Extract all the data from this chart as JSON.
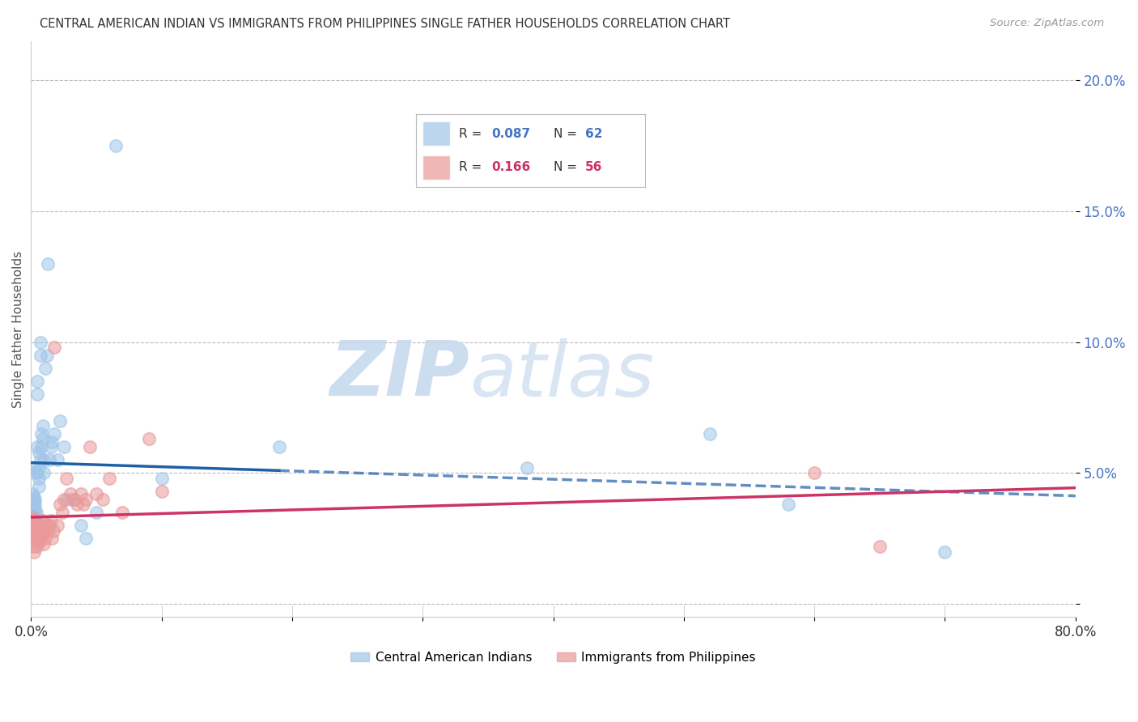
{
  "title": "CENTRAL AMERICAN INDIAN VS IMMIGRANTS FROM PHILIPPINES SINGLE FATHER HOUSEHOLDS CORRELATION CHART",
  "source": "Source: ZipAtlas.com",
  "ylabel": "Single Father Households",
  "xlim": [
    0.0,
    0.8
  ],
  "ylim": [
    -0.005,
    0.215
  ],
  "yticks": [
    0.0,
    0.05,
    0.1,
    0.15,
    0.2
  ],
  "ytick_labels": [
    "",
    "5.0%",
    "10.0%",
    "15.0%",
    "20.0%"
  ],
  "xticks": [
    0.0,
    0.1,
    0.2,
    0.3,
    0.4,
    0.5,
    0.6,
    0.7,
    0.8
  ],
  "xtick_labels": [
    "0.0%",
    "",
    "",
    "",
    "",
    "",
    "",
    "",
    "80.0%"
  ],
  "grid_color": "#bbbbbb",
  "blue_color": "#9fc5e8",
  "pink_color": "#ea9999",
  "blue_line_color": "#1f5fa6",
  "pink_line_color": "#cc3366",
  "blue_R": 0.087,
  "blue_N": 62,
  "pink_R": 0.166,
  "pink_N": 56,
  "legend1": "Central American Indians",
  "legend2": "Immigrants from Philippines",
  "watermark_zip": "ZIP",
  "watermark_atlas": "atlas",
  "blue_x": [
    0.001,
    0.001,
    0.001,
    0.001,
    0.001,
    0.002,
    0.002,
    0.002,
    0.002,
    0.002,
    0.002,
    0.003,
    0.003,
    0.003,
    0.003,
    0.003,
    0.003,
    0.003,
    0.003,
    0.004,
    0.004,
    0.004,
    0.004,
    0.005,
    0.005,
    0.005,
    0.005,
    0.006,
    0.006,
    0.006,
    0.006,
    0.007,
    0.007,
    0.007,
    0.008,
    0.008,
    0.009,
    0.009,
    0.01,
    0.01,
    0.011,
    0.012,
    0.013,
    0.014,
    0.015,
    0.016,
    0.018,
    0.02,
    0.022,
    0.025,
    0.028,
    0.032,
    0.038,
    0.042,
    0.05,
    0.065,
    0.1,
    0.19,
    0.38,
    0.52,
    0.58,
    0.7
  ],
  "blue_y": [
    0.04,
    0.035,
    0.038,
    0.042,
    0.036,
    0.033,
    0.037,
    0.039,
    0.041,
    0.03,
    0.032,
    0.03,
    0.032,
    0.034,
    0.036,
    0.038,
    0.04,
    0.05,
    0.052,
    0.028,
    0.03,
    0.032,
    0.035,
    0.08,
    0.085,
    0.05,
    0.06,
    0.045,
    0.048,
    0.052,
    0.058,
    0.095,
    0.1,
    0.055,
    0.06,
    0.065,
    0.063,
    0.068,
    0.05,
    0.055,
    0.09,
    0.095,
    0.13,
    0.055,
    0.06,
    0.062,
    0.065,
    0.055,
    0.07,
    0.06,
    0.04,
    0.04,
    0.03,
    0.025,
    0.035,
    0.175,
    0.048,
    0.06,
    0.052,
    0.065,
    0.038,
    0.02
  ],
  "pink_x": [
    0.001,
    0.001,
    0.001,
    0.001,
    0.002,
    0.002,
    0.002,
    0.002,
    0.002,
    0.002,
    0.003,
    0.003,
    0.003,
    0.003,
    0.004,
    0.004,
    0.005,
    0.005,
    0.005,
    0.006,
    0.006,
    0.007,
    0.007,
    0.008,
    0.008,
    0.009,
    0.01,
    0.01,
    0.011,
    0.012,
    0.013,
    0.014,
    0.015,
    0.016,
    0.017,
    0.018,
    0.02,
    0.022,
    0.024,
    0.025,
    0.027,
    0.03,
    0.033,
    0.035,
    0.038,
    0.04,
    0.042,
    0.045,
    0.05,
    0.055,
    0.06,
    0.07,
    0.09,
    0.1,
    0.6,
    0.65
  ],
  "pink_y": [
    0.033,
    0.03,
    0.028,
    0.032,
    0.025,
    0.028,
    0.03,
    0.026,
    0.022,
    0.02,
    0.025,
    0.028,
    0.03,
    0.032,
    0.025,
    0.028,
    0.022,
    0.025,
    0.028,
    0.024,
    0.026,
    0.025,
    0.028,
    0.026,
    0.03,
    0.032,
    0.023,
    0.027,
    0.025,
    0.03,
    0.028,
    0.03,
    0.032,
    0.025,
    0.028,
    0.098,
    0.03,
    0.038,
    0.035,
    0.04,
    0.048,
    0.042,
    0.04,
    0.038,
    0.042,
    0.038,
    0.04,
    0.06,
    0.042,
    0.04,
    0.048,
    0.035,
    0.063,
    0.043,
    0.05,
    0.022
  ]
}
